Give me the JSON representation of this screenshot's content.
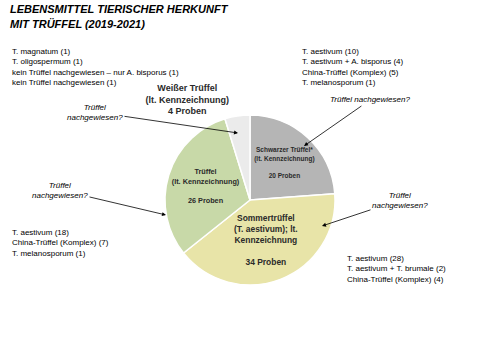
{
  "chart_data": {
    "type": "pie",
    "title": "LEBENSMITTEL TIERISCHER HERKUNFT\nMIT TRÜFFEL (2019-2021)",
    "categories": [
      "Schwarzer Trüffel*\n(lt. Kennzeichnung)\n\n20 Proben",
      "Sommertrüffel\n(T. aestivum); lt.\nKennzeichnung\n\n34 Proben",
      "Trüffel\n(lt. Kennzeichnung)\n\n26 Proben",
      "Weißer Trüffel\n(lt. Kennzeichnung)\n4 Proben"
    ],
    "values": [
      20,
      34,
      26,
      4
    ],
    "colors": [
      "#b5b5b5",
      "#e8e4a8",
      "#c8d9a8",
      "#ebebeb"
    ],
    "annotations": [
      "T. aestivum (10)\nT. aestivum + A. bisporus (4)\nChina-Trüffel (Komplex) (5)\nT. melanosporum (1)",
      "Trüffel nachgewiesen?",
      "T. aestivum (28)\nT. aestivum + T. brumale (2)\nChina-Trüffel (Komplex) (4)",
      "Trüffel\nnachgewiesen?",
      "T. aestivum (18)\nChina-Trüffel (Komplex) (7)\nT. melanosporum (1)",
      "Trüffel\nnachgewiesen?",
      "T. magnatum (1)\nT. oligospermum (1)\nkein Trüffel nachgewiesen – nur A. bisporus (1)\nkein Trüffel nachgewiesen (1)",
      "Trüffel\nnachgewiesen?"
    ]
  }
}
